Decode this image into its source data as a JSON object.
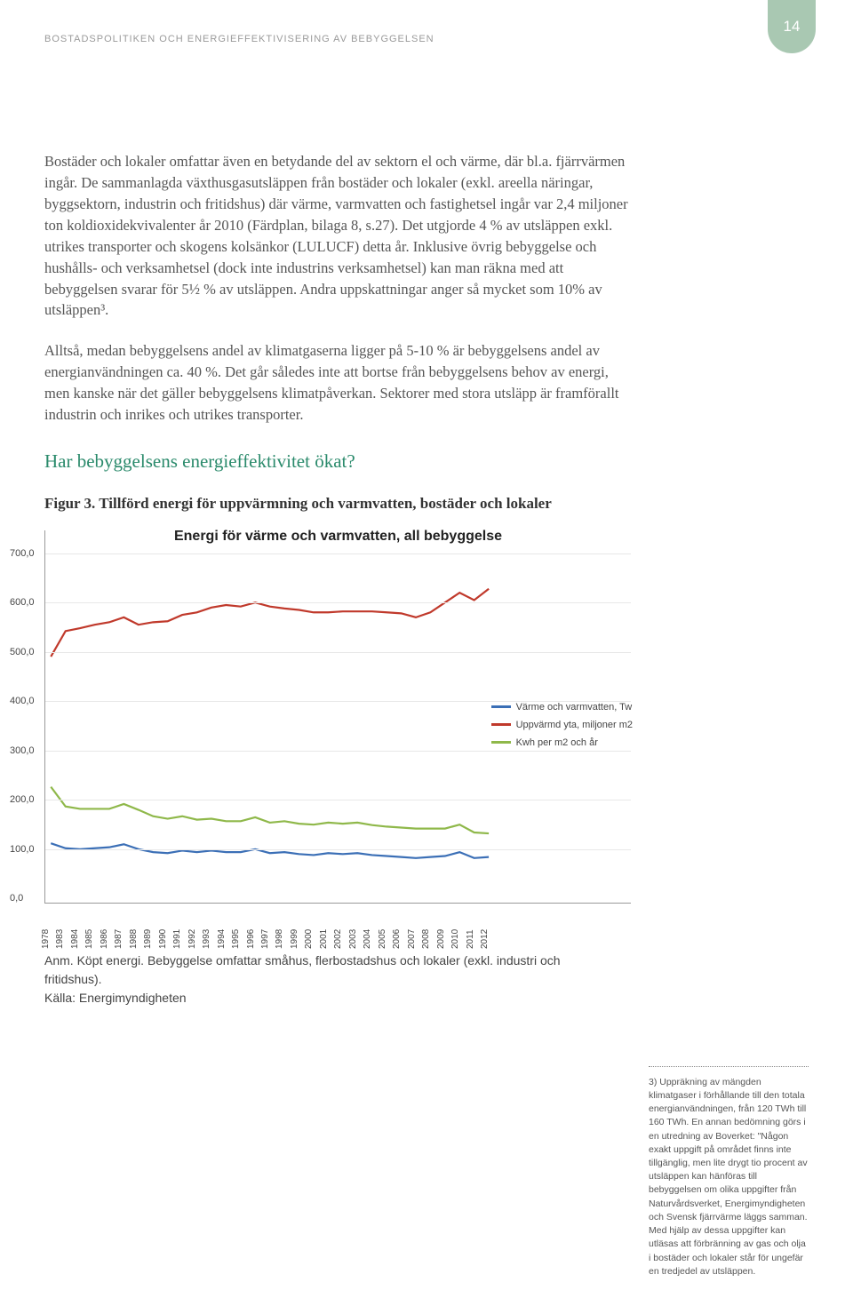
{
  "page_number": "14",
  "running_header": "BOSTADSPOLITIKEN OCH ENERGIEFFEKTIVISERING AV BEBYGGELSEN",
  "para1": "Bostäder och lokaler omfattar även en betydande del av sektorn el och värme, där bl.a. fjärrvärmen ingår. De sammanlagda växthusgasutsläppen från bostäder och lokaler (exkl. areella näringar, byggsektorn, industrin och fritidshus) där värme, varmvatten och fastighetsel ingår var 2,4 miljoner ton koldioxidekvivalenter år 2010 (Färdplan, bilaga 8, s.27). Det utgjorde 4 % av utsläppen exkl. utrikes transporter och skogens kolsänkor (LULUCF) detta år. Inklusive övrig bebyggelse och hushålls- och verksamhetsel (dock inte industrins verksamhetsel) kan man räkna med att bebyggelsen svarar för 5½ % av utsläppen. Andra uppskattningar anger så mycket som 10% av utsläppen³.",
  "para2": "Alltså, medan bebyggelsens andel av klimatgaserna ligger på 5-10 % är bebyggelsens andel av energianvändningen ca. 40 %. Det går således inte att bortse från bebyggelsens behov av energi, men kanske när det gäller bebyggelsens klimatpåverkan. Sektorer med stora utsläpp är framförallt industrin och inrikes och utrikes transporter.",
  "section_heading": "Har bebyggelsens energieffektivitet ökat?",
  "figure_title": "Figur 3. Tillförd energi för uppvärmning och varmvatten, bostäder och lokaler",
  "chart": {
    "type": "line",
    "title": "Energi för värme och varmvatten, all bebyggelse",
    "background_color": "#ffffff",
    "grid_color": "#e8e8e8",
    "ylim": [
      0,
      700
    ],
    "ytick_step": 100,
    "ytick_labels": [
      "0,0",
      "100,0",
      "200,0",
      "300,0",
      "400,0",
      "500,0",
      "600,0",
      "700,0"
    ],
    "x_categories": [
      "1978",
      "1983",
      "1984",
      "1985",
      "1986",
      "1987",
      "1988",
      "1989",
      "1990",
      "1991",
      "1992",
      "1993",
      "1994",
      "1995",
      "1996",
      "1997",
      "1998",
      "1999",
      "2000",
      "2001",
      "2002",
      "2003",
      "2004",
      "2005",
      "2006",
      "2007",
      "2008",
      "2009",
      "2010",
      "2011",
      "2012"
    ],
    "series": [
      {
        "name": "Värme och varmvatten, Tw",
        "color": "#3b6fb6",
        "stroke_width": 2.2,
        "values": [
          110,
          100,
          98,
          100,
          102,
          108,
          98,
          92,
          90,
          95,
          92,
          95,
          92,
          92,
          98,
          90,
          92,
          88,
          86,
          90,
          88,
          90,
          86,
          84,
          82,
          80,
          82,
          84,
          92,
          80,
          82
        ]
      },
      {
        "name": "Uppvärmd yta, miljoner m2",
        "color": "#c0392b",
        "stroke_width": 2.2,
        "values": [
          490,
          542,
          548,
          555,
          560,
          570,
          555,
          560,
          562,
          575,
          580,
          590,
          595,
          592,
          600,
          592,
          588,
          585,
          580,
          580,
          582,
          582,
          582,
          580,
          578,
          570,
          580,
          600,
          620,
          605,
          628
        ]
      },
      {
        "name": "Kwh per m2 och år",
        "color": "#8fb84a",
        "stroke_width": 2.2,
        "values": [
          225,
          185,
          180,
          180,
          180,
          190,
          178,
          165,
          160,
          165,
          158,
          160,
          155,
          155,
          163,
          152,
          155,
          150,
          148,
          152,
          150,
          152,
          147,
          144,
          142,
          140,
          140,
          140,
          148,
          132,
          130
        ]
      }
    ],
    "legend_pos": "right-middle",
    "label_fontsize": 11,
    "title_fontsize": 16
  },
  "chart_note_1": "Anm. Köpt energi. Bebyggelse omfattar småhus, flerbostadshus och lokaler (exkl. industri och fritidshus).",
  "chart_note_2": "Källa: Energimyndigheten",
  "footnote": "3) Uppräkning av mängden klimatgaser i förhållande till den totala energianvändningen, från 120 TWh till 160 TWh. En annan bedömning görs i en utredning av Boverket: \"Någon exakt uppgift på området finns inte tillgänglig, men lite drygt tio procent av utsläppen kan hänföras till bebyggelsen om olika uppgifter från Naturvårdsverket, Energimyndigheten och Svensk fjärrvärme läggs samman. Med hjälp av dessa uppgifter kan utläsas att förbränning av gas och olja i bostäder och lokaler står för ungefär en tredjedel av utsläppen."
}
